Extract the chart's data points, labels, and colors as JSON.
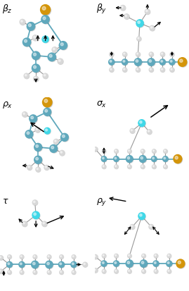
{
  "colors": {
    "teal": "#5fa8bc",
    "teal_dark": "#4a8fa5",
    "cyan": "#40d8e8",
    "cyan_light": "#60e0f0",
    "gold": "#d4950a",
    "gold_light": "#e8b020",
    "white_atom": "#d8d8d8",
    "white_atom_light": "#eeeeee",
    "bond": "#5fa8bc",
    "background": "#ffffff",
    "arrow": "#111111",
    "gray_bond": "#999999"
  },
  "figsize": [
    2.69,
    4.13
  ],
  "dpi": 100
}
